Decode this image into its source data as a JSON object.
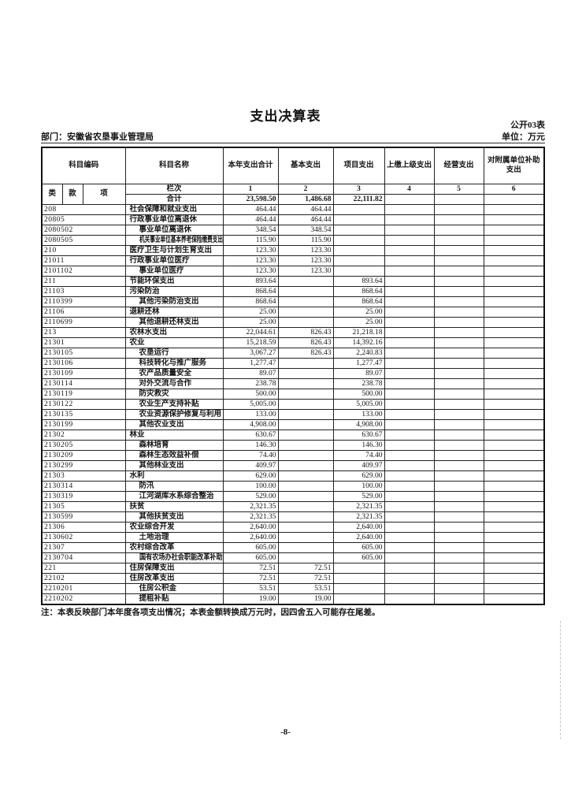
{
  "page": {
    "title": "支出决算表",
    "table_code": "公开03表",
    "department_line": "部门：安徽省农垦事业管理局",
    "unit_line": "单位：万元",
    "note": "注：本表反映部门本年度各项支出情况；本表金额转换成万元时，因四舍五入可能存在尾差。",
    "page_number": "-8-",
    "colors": {
      "ink": "#141414",
      "paper": "#ffffff"
    }
  },
  "table": {
    "headers": {
      "subject_code": "科目编码",
      "subject_name": "科目名称",
      "col1": "本年支出合计",
      "col2": "基本支出",
      "col3": "项目支出",
      "col4": "上缴上级支出",
      "col5": "经营支出",
      "col6": "对附属单位补助支出",
      "sub": [
        "类",
        "款",
        "项"
      ],
      "lanci": "栏次",
      "col_numbers": [
        "1",
        "2",
        "3",
        "4",
        "5",
        "6"
      ]
    },
    "total_row": {
      "name": "合计",
      "c1": "23,598.50",
      "c2": "1,486.68",
      "c3": "22,111.82",
      "c4": "",
      "c5": "",
      "c6": ""
    },
    "rows": [
      {
        "code": "208",
        "name": "社会保障和就业支出",
        "indent": 0,
        "c1": "464.44",
        "c2": "464.44",
        "c3": "",
        "c4": "",
        "c5": "",
        "c6": ""
      },
      {
        "code": "20805",
        "name": "行政事业单位离退休",
        "indent": 0,
        "c1": "464.44",
        "c2": "464.44",
        "c3": "",
        "c4": "",
        "c5": "",
        "c6": ""
      },
      {
        "code": "2080502",
        "name": "事业单位离退休",
        "indent": 1,
        "c1": "348.54",
        "c2": "348.54",
        "c3": "",
        "c4": "",
        "c5": "",
        "c6": ""
      },
      {
        "code": "2080505",
        "name": "机关事业单位基本养老保险缴费支出",
        "indent": 1,
        "c1": "115.90",
        "c2": "115.90",
        "c3": "",
        "c4": "",
        "c5": "",
        "c6": ""
      },
      {
        "code": "210",
        "name": "医疗卫生与计划生育支出",
        "indent": 0,
        "c1": "123.30",
        "c2": "123.30",
        "c3": "",
        "c4": "",
        "c5": "",
        "c6": ""
      },
      {
        "code": "21011",
        "name": "行政事业单位医疗",
        "indent": 0,
        "c1": "123.30",
        "c2": "123.30",
        "c3": "",
        "c4": "",
        "c5": "",
        "c6": ""
      },
      {
        "code": "2101102",
        "name": "事业单位医疗",
        "indent": 1,
        "c1": "123.30",
        "c2": "123.30",
        "c3": "",
        "c4": "",
        "c5": "",
        "c6": ""
      },
      {
        "code": "211",
        "name": "节能环保支出",
        "indent": 0,
        "c1": "893.64",
        "c2": "",
        "c3": "893.64",
        "c4": "",
        "c5": "",
        "c6": ""
      },
      {
        "code": "21103",
        "name": "污染防治",
        "indent": 0,
        "c1": "868.64",
        "c2": "",
        "c3": "868.64",
        "c4": "",
        "c5": "",
        "c6": ""
      },
      {
        "code": "2110399",
        "name": "其他污染防治支出",
        "indent": 1,
        "c1": "868.64",
        "c2": "",
        "c3": "868.64",
        "c4": "",
        "c5": "",
        "c6": ""
      },
      {
        "code": "21106",
        "name": "退耕还林",
        "indent": 0,
        "c1": "25.00",
        "c2": "",
        "c3": "25.00",
        "c4": "",
        "c5": "",
        "c6": ""
      },
      {
        "code": "2110699",
        "name": "其他退耕还林支出",
        "indent": 1,
        "c1": "25.00",
        "c2": "",
        "c3": "25.00",
        "c4": "",
        "c5": "",
        "c6": ""
      },
      {
        "code": "213",
        "name": "农林水支出",
        "indent": 0,
        "c1": "22,044.61",
        "c2": "826.43",
        "c3": "21,218.18",
        "c4": "",
        "c5": "",
        "c6": ""
      },
      {
        "code": "21301",
        "name": "农业",
        "indent": 0,
        "c1": "15,218.59",
        "c2": "826.43",
        "c3": "14,392.16",
        "c4": "",
        "c5": "",
        "c6": ""
      },
      {
        "code": "2130105",
        "name": "农垦运行",
        "indent": 1,
        "c1": "3,067.27",
        "c2": "826.43",
        "c3": "2,240.83",
        "c4": "",
        "c5": "",
        "c6": ""
      },
      {
        "code": "2130106",
        "name": "科技转化与推广服务",
        "indent": 1,
        "c1": "1,277.47",
        "c2": "",
        "c3": "1,277.47",
        "c4": "",
        "c5": "",
        "c6": ""
      },
      {
        "code": "2130109",
        "name": "农产品质量安全",
        "indent": 1,
        "c1": "89.07",
        "c2": "",
        "c3": "89.07",
        "c4": "",
        "c5": "",
        "c6": ""
      },
      {
        "code": "2130114",
        "name": "对外交流与合作",
        "indent": 1,
        "c1": "238.78",
        "c2": "",
        "c3": "238.78",
        "c4": "",
        "c5": "",
        "c6": ""
      },
      {
        "code": "2130119",
        "name": "防灾救灾",
        "indent": 1,
        "c1": "500.00",
        "c2": "",
        "c3": "500.00",
        "c4": "",
        "c5": "",
        "c6": ""
      },
      {
        "code": "2130122",
        "name": "农业生产支持补贴",
        "indent": 1,
        "c1": "5,005.00",
        "c2": "",
        "c3": "5,005.00",
        "c4": "",
        "c5": "",
        "c6": ""
      },
      {
        "code": "2130135",
        "name": "农业资源保护修复与利用",
        "indent": 1,
        "c1": "133.00",
        "c2": "",
        "c3": "133.00",
        "c4": "",
        "c5": "",
        "c6": ""
      },
      {
        "code": "2130199",
        "name": "其他农业支出",
        "indent": 1,
        "c1": "4,908.00",
        "c2": "",
        "c3": "4,908.00",
        "c4": "",
        "c5": "",
        "c6": ""
      },
      {
        "code": "21302",
        "name": "林业",
        "indent": 0,
        "c1": "630.67",
        "c2": "",
        "c3": "630.67",
        "c4": "",
        "c5": "",
        "c6": ""
      },
      {
        "code": "2130205",
        "name": "森林培育",
        "indent": 1,
        "c1": "146.30",
        "c2": "",
        "c3": "146.30",
        "c4": "",
        "c5": "",
        "c6": ""
      },
      {
        "code": "2130209",
        "name": "森林生态效益补偿",
        "indent": 1,
        "c1": "74.40",
        "c2": "",
        "c3": "74.40",
        "c4": "",
        "c5": "",
        "c6": ""
      },
      {
        "code": "2130299",
        "name": "其他林业支出",
        "indent": 1,
        "c1": "409.97",
        "c2": "",
        "c3": "409.97",
        "c4": "",
        "c5": "",
        "c6": ""
      },
      {
        "code": "21303",
        "name": "水利",
        "indent": 0,
        "c1": "629.00",
        "c2": "",
        "c3": "629.00",
        "c4": "",
        "c5": "",
        "c6": ""
      },
      {
        "code": "2130314",
        "name": "防汛",
        "indent": 1,
        "c1": "100.00",
        "c2": "",
        "c3": "100.00",
        "c4": "",
        "c5": "",
        "c6": ""
      },
      {
        "code": "2130319",
        "name": "江河湖库水系综合整治",
        "indent": 1,
        "c1": "529.00",
        "c2": "",
        "c3": "529.00",
        "c4": "",
        "c5": "",
        "c6": ""
      },
      {
        "code": "21305",
        "name": "扶贫",
        "indent": 0,
        "c1": "2,321.35",
        "c2": "",
        "c3": "2,321.35",
        "c4": "",
        "c5": "",
        "c6": ""
      },
      {
        "code": "2130599",
        "name": "其他扶贫支出",
        "indent": 1,
        "c1": "2,321.35",
        "c2": "",
        "c3": "2,321.35",
        "c4": "",
        "c5": "",
        "c6": ""
      },
      {
        "code": "21306",
        "name": "农业综合开发",
        "indent": 0,
        "c1": "2,640.00",
        "c2": "",
        "c3": "2,640.00",
        "c4": "",
        "c5": "",
        "c6": ""
      },
      {
        "code": "2130602",
        "name": "土地治理",
        "indent": 1,
        "c1": "2,640.00",
        "c2": "",
        "c3": "2,640.00",
        "c4": "",
        "c5": "",
        "c6": ""
      },
      {
        "code": "21307",
        "name": "农村综合改革",
        "indent": 0,
        "c1": "605.00",
        "c2": "",
        "c3": "605.00",
        "c4": "",
        "c5": "",
        "c6": ""
      },
      {
        "code": "2130704",
        "name": "国有农场办社会职能改革补助",
        "indent": 1,
        "c1": "605.00",
        "c2": "",
        "c3": "605.00",
        "c4": "",
        "c5": "",
        "c6": ""
      },
      {
        "code": "221",
        "name": "住房保障支出",
        "indent": 0,
        "c1": "72.51",
        "c2": "72.51",
        "c3": "",
        "c4": "",
        "c5": "",
        "c6": ""
      },
      {
        "code": "22102",
        "name": "住房改革支出",
        "indent": 0,
        "c1": "72.51",
        "c2": "72.51",
        "c3": "",
        "c4": "",
        "c5": "",
        "c6": ""
      },
      {
        "code": "2210201",
        "name": "住房公积金",
        "indent": 1,
        "c1": "53.51",
        "c2": "53.51",
        "c3": "",
        "c4": "",
        "c5": "",
        "c6": ""
      },
      {
        "code": "2210202",
        "name": "提租补贴",
        "indent": 1,
        "c1": "19.00",
        "c2": "19.00",
        "c3": "",
        "c4": "",
        "c5": "",
        "c6": ""
      }
    ]
  }
}
